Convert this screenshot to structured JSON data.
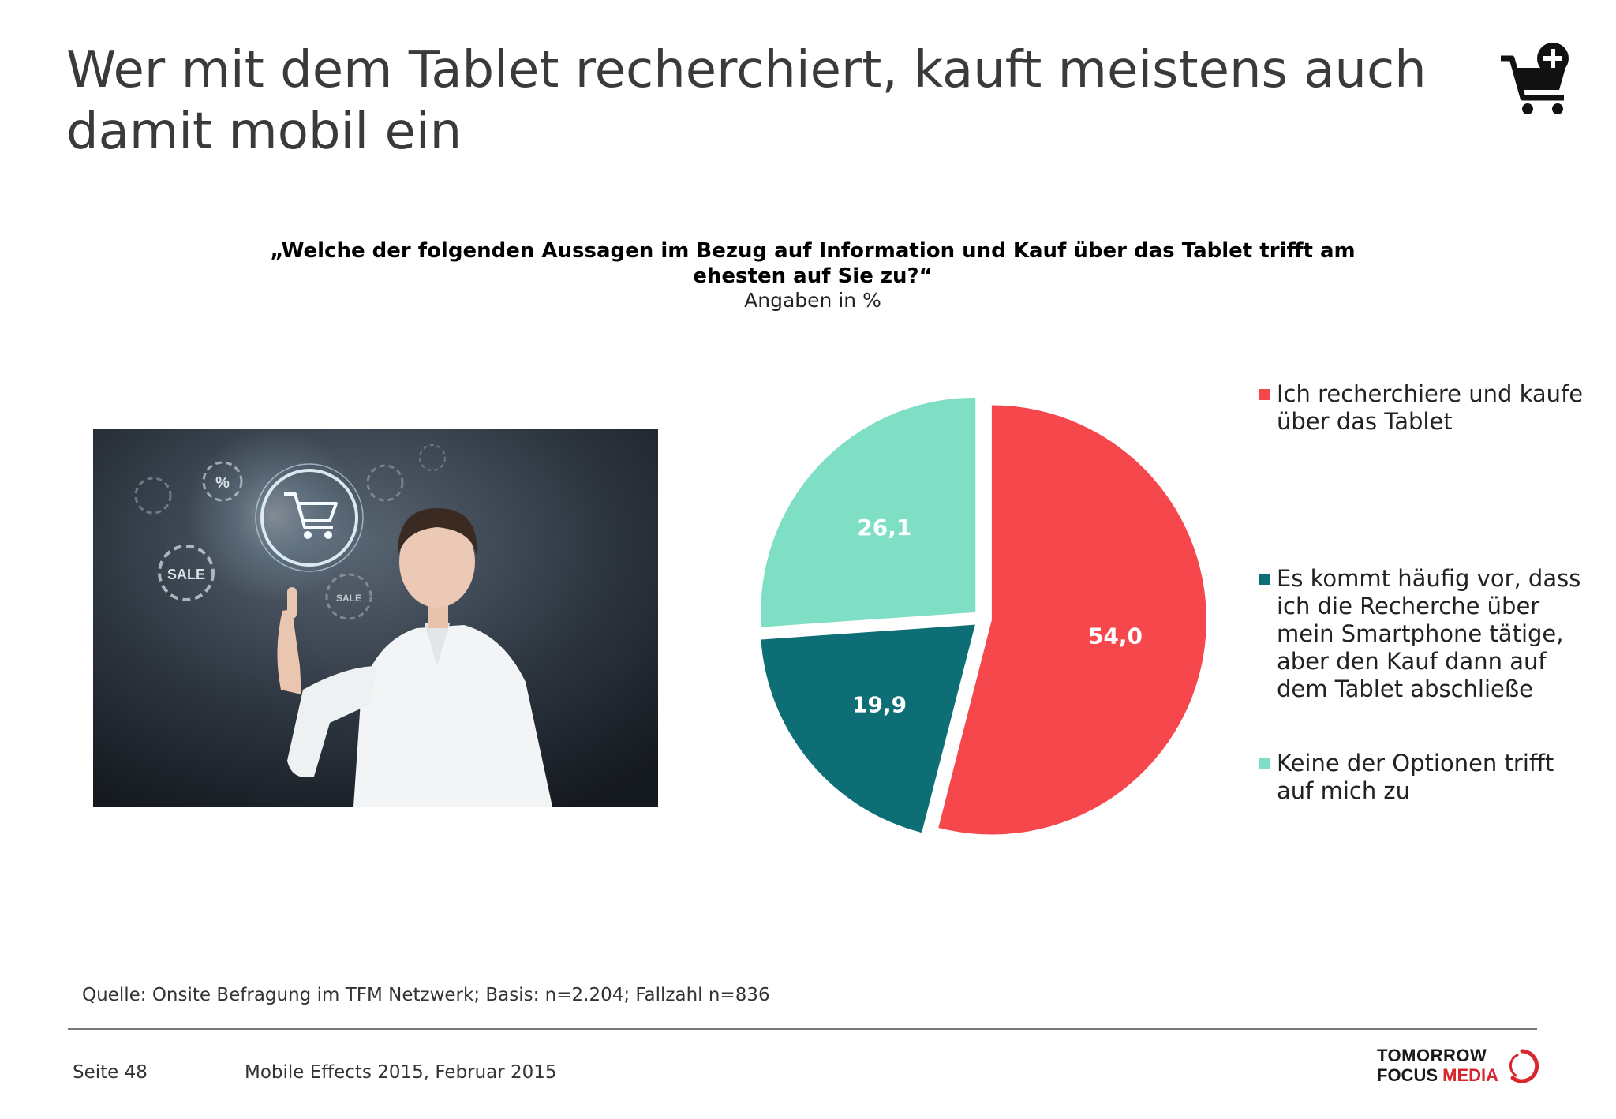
{
  "title": "Wer mit dem Tablet recherchiert, kauft meistens auch damit mobil ein",
  "chart_data": {
    "type": "pie",
    "title": "„Welche der folgenden Aussagen im Bezug auf Information und Kauf über das Tablet trifft am ehesten auf Sie zu?“",
    "subtitle": "Angaben in %",
    "slices": [
      {
        "label": "Ich recherchiere und kaufe über das Tablet",
        "value": 54.0,
        "display": "54,0",
        "color": "#f6474d"
      },
      {
        "label": "Es kommt häufig vor, dass ich die Recherche über mein Smartphone tätige, aber den Kauf dann auf dem Tablet abschließe",
        "value": 19.9,
        "display": "19,9",
        "color": "#0e6e75"
      },
      {
        "label": "Keine der Optionen trifft auf mich zu",
        "value": 26.1,
        "display": "26,1",
        "color": "#7fdfc4"
      }
    ],
    "legend_placement": "right",
    "exploded": true
  },
  "icons": {
    "cart": "shopping-cart-plus-icon"
  },
  "photo_text": {
    "sale1": "SALE",
    "sale2": "SALE",
    "percent": "%"
  },
  "source": "Quelle: Onsite Befragung im TFM Netzwerk; Basis: n=2.204; Fallzahl n=836",
  "footer": {
    "page": "Seite 48",
    "note": "Mobile Effects 2015, Februar 2015",
    "logo_line1": "TOMORROW",
    "logo_line2a": "FOCUS",
    "logo_line2b": "MEDIA"
  },
  "colors": {
    "accent_red": "#d7262e",
    "title_text": "#3a3a3a"
  }
}
